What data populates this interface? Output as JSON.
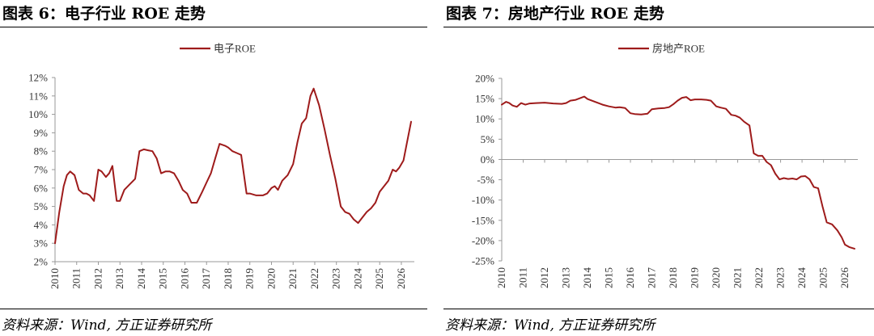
{
  "source_text": "资料来源：Wind, 方正证券研究所",
  "line_color": "#9e1b1b",
  "chart_data": [
    {
      "type": "line",
      "title": "图表 6：电子行业 ROE 走势",
      "legend": "电子ROE",
      "legend_position": "top-center",
      "grid": false,
      "y_ticks": [
        "12%",
        "11%",
        "10%",
        "9%",
        "8%",
        "7%",
        "6%",
        "5%",
        "4%",
        "3%",
        "2%"
      ],
      "x_ticks": [
        "2010",
        "2011",
        "2012",
        "2013",
        "2014",
        "2015",
        "2016",
        "2017",
        "2018",
        "2019",
        "2020",
        "2021",
        "2022",
        "2023",
        "2024",
        "2025",
        "2026"
      ],
      "ylim": [
        2,
        12
      ],
      "xlim": [
        2010,
        2026.6
      ],
      "series": [
        {
          "name": "电子ROE",
          "x": [
            2010.0,
            2010.2,
            2010.4,
            2010.55,
            2010.7,
            2010.9,
            2011.1,
            2011.3,
            2011.45,
            2011.6,
            2011.8,
            2012.0,
            2012.15,
            2012.35,
            2012.5,
            2012.65,
            2012.85,
            2013.0,
            2013.2,
            2013.45,
            2013.7,
            2013.9,
            2014.1,
            2014.3,
            2014.5,
            2014.7,
            2014.9,
            2015.1,
            2015.3,
            2015.5,
            2015.7,
            2015.9,
            2016.1,
            2016.3,
            2016.55,
            2016.8,
            2017.0,
            2017.2,
            2017.4,
            2017.6,
            2017.85,
            2018.0,
            2018.2,
            2018.4,
            2018.6,
            2018.85,
            2019.0,
            2019.3,
            2019.6,
            2019.8,
            2020.0,
            2020.15,
            2020.3,
            2020.5,
            2020.75,
            2021.0,
            2021.2,
            2021.4,
            2021.6,
            2021.8,
            2021.95,
            2022.2,
            2022.45,
            2022.7,
            2022.95,
            2023.2,
            2023.4,
            2023.6,
            2023.8,
            2024.0,
            2024.2,
            2024.4,
            2024.6,
            2024.8,
            2025.0,
            2025.2,
            2025.4,
            2025.6,
            2025.75,
            2025.9,
            2026.1,
            2026.25,
            2026.45
          ],
          "values": [
            3.0,
            4.7,
            6.1,
            6.7,
            6.9,
            6.7,
            5.9,
            5.7,
            5.7,
            5.6,
            5.3,
            7.0,
            6.9,
            6.6,
            6.8,
            7.2,
            5.3,
            5.3,
            5.9,
            6.2,
            6.5,
            8.0,
            8.1,
            8.05,
            8.0,
            7.6,
            6.8,
            6.9,
            6.9,
            6.8,
            6.4,
            5.9,
            5.7,
            5.2,
            5.2,
            5.8,
            6.3,
            6.8,
            7.6,
            8.4,
            8.3,
            8.2,
            8.0,
            7.9,
            7.8,
            5.7,
            5.7,
            5.6,
            5.6,
            5.7,
            6.0,
            6.1,
            5.9,
            6.4,
            6.7,
            7.3,
            8.5,
            9.5,
            9.8,
            11.0,
            11.4,
            10.5,
            9.2,
            7.8,
            6.5,
            5.0,
            4.7,
            4.6,
            4.3,
            4.1,
            4.4,
            4.7,
            4.9,
            5.2,
            5.8,
            6.1,
            6.4,
            7.0,
            6.9,
            7.1,
            7.5,
            8.4,
            9.6
          ]
        }
      ]
    },
    {
      "type": "line",
      "title": "图表 7：房地产行业 ROE 走势",
      "legend": "房地产ROE",
      "legend_position": "top-center",
      "grid": false,
      "y_ticks": [
        "20%",
        "15%",
        "10%",
        "5%",
        "0%",
        "-5%",
        "-10%",
        "-15%",
        "-20%",
        "-25%"
      ],
      "x_ticks": [
        "2010",
        "2011",
        "2012",
        "2013",
        "2014",
        "2015",
        "2016",
        "2017",
        "2018",
        "2019",
        "2020",
        "2021",
        "2022",
        "2023",
        "2024",
        "2025",
        "2026"
      ],
      "ylim": [
        -25,
        20
      ],
      "xlim": [
        2010,
        2026.6
      ],
      "series": [
        {
          "name": "房地产ROE",
          "x": [
            2010.0,
            2010.2,
            2010.35,
            2010.5,
            2010.7,
            2010.9,
            2011.1,
            2011.3,
            2011.6,
            2012.0,
            2012.4,
            2012.8,
            2013.0,
            2013.2,
            2013.45,
            2013.65,
            2013.85,
            2014.0,
            2014.2,
            2014.45,
            2014.7,
            2015.0,
            2015.3,
            2015.5,
            2015.75,
            2016.0,
            2016.2,
            2016.5,
            2016.8,
            2017.0,
            2017.3,
            2017.6,
            2017.8,
            2018.0,
            2018.2,
            2018.4,
            2018.6,
            2018.8,
            2019.0,
            2019.3,
            2019.55,
            2019.75,
            2020.0,
            2020.2,
            2020.45,
            2020.7,
            2020.9,
            2021.1,
            2021.3,
            2021.55,
            2021.75,
            2021.95,
            2022.15,
            2022.35,
            2022.55,
            2022.75,
            2022.95,
            2023.15,
            2023.35,
            2023.55,
            2023.75,
            2023.95,
            2024.15,
            2024.35,
            2024.55,
            2024.75,
            2024.95,
            2025.15,
            2025.4,
            2025.65,
            2025.85,
            2026.0,
            2026.2,
            2026.45
          ],
          "values": [
            13.5,
            14.2,
            13.9,
            13.3,
            13.0,
            13.9,
            13.5,
            13.8,
            13.9,
            14.0,
            13.8,
            13.7,
            13.9,
            14.5,
            14.7,
            15.1,
            15.5,
            14.9,
            14.5,
            14.0,
            13.5,
            13.1,
            12.8,
            12.9,
            12.7,
            11.4,
            11.2,
            11.1,
            11.3,
            12.4,
            12.6,
            12.7,
            12.9,
            13.6,
            14.5,
            15.2,
            15.4,
            14.6,
            14.8,
            14.8,
            14.7,
            14.5,
            13.1,
            12.8,
            12.5,
            11.0,
            10.8,
            10.3,
            9.3,
            8.4,
            1.5,
            0.9,
            0.9,
            -0.6,
            -1.4,
            -3.5,
            -4.9,
            -4.6,
            -4.8,
            -4.7,
            -4.9,
            -4.2,
            -4.1,
            -4.9,
            -6.8,
            -7.1,
            -11.5,
            -15.5,
            -16.0,
            -17.5,
            -19.2,
            -21.0,
            -21.6,
            -22.0
          ]
        }
      ]
    }
  ]
}
